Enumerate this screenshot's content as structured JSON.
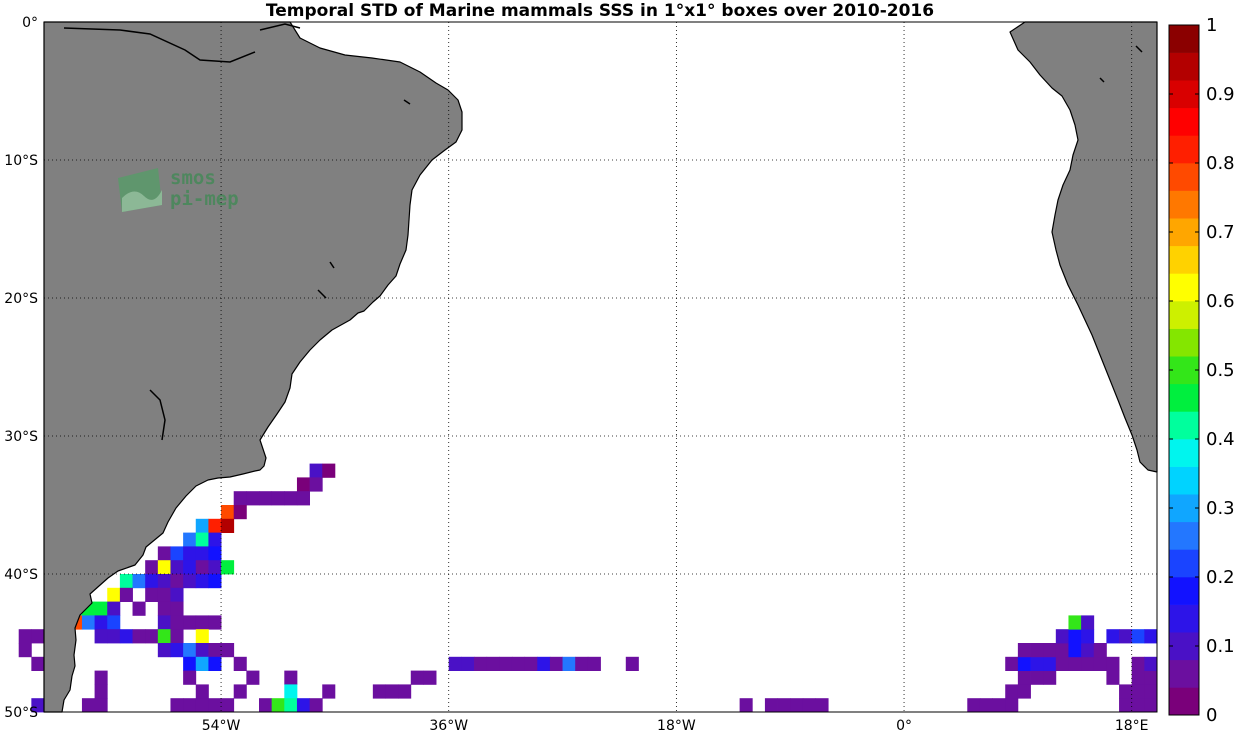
{
  "chart_data": {
    "type": "heatmap",
    "title": "Temporal STD of Marine mammals SSS in 1°x1° boxes over 2010-2016",
    "xlim": [
      -68,
      20
    ],
    "ylim": [
      -50,
      0
    ],
    "x_ticks": [
      {
        "value": -54,
        "label": "54°W"
      },
      {
        "value": -36,
        "label": "36°W"
      },
      {
        "value": -18,
        "label": "18°W"
      },
      {
        "value": 0,
        "label": "0°"
      },
      {
        "value": 18,
        "label": "18°E"
      }
    ],
    "y_ticks": [
      {
        "value": 0,
        "label": "0°"
      },
      {
        "value": -10,
        "label": "10°S"
      },
      {
        "value": -20,
        "label": "20°S"
      },
      {
        "value": -30,
        "label": "30°S"
      },
      {
        "value": -40,
        "label": "40°S"
      },
      {
        "value": -50,
        "label": "50°S"
      }
    ],
    "grid": true,
    "grid_style": "dotted",
    "land_color": "#808080",
    "colorbar": {
      "min": 0,
      "max": 1,
      "ticks": [
        "0",
        "0.1",
        "0.2",
        "0.3",
        "0.4",
        "0.5",
        "0.6",
        "0.7",
        "0.8",
        "0.9",
        "1"
      ],
      "colors": [
        "#7a007a",
        "#6b0f9f",
        "#4a11c6",
        "#2d14e8",
        "#1212ff",
        "#1a44ff",
        "#2377ff",
        "#10a6ff",
        "#00d3ff",
        "#00f5ee",
        "#00ff9d",
        "#00ef3e",
        "#33e619",
        "#84e600",
        "#cdf000",
        "#ffff00",
        "#ffd200",
        "#ffa600",
        "#ff7800",
        "#ff4a00",
        "#ff1f00",
        "#ff0000",
        "#d90000",
        "#b30000",
        "#8b0000"
      ]
    },
    "cells": [
      {
        "lon": -46.5,
        "lat": -32.5,
        "value": 0.08
      },
      {
        "lon": -45.5,
        "lat": -32.5,
        "value": 0.03
      },
      {
        "lon": -47.5,
        "lat": -33.5,
        "value": 0.03
      },
      {
        "lon": -46.5,
        "lat": -33.5,
        "value": 0.04
      },
      {
        "lon": -52.5,
        "lat": -34.5,
        "value": 0.04
      },
      {
        "lon": -51.5,
        "lat": -34.5,
        "value": 0.05
      },
      {
        "lon": -50.5,
        "lat": -34.5,
        "value": 0.05
      },
      {
        "lon": -49.5,
        "lat": -34.5,
        "value": 0.04
      },
      {
        "lon": -48.5,
        "lat": -34.5,
        "value": 0.06
      },
      {
        "lon": -47.5,
        "lat": -34.5,
        "value": 0.04
      },
      {
        "lon": -53.5,
        "lat": -35.5,
        "value": 0.76
      },
      {
        "lon": -52.5,
        "lat": -35.5,
        "value": 0.03
      },
      {
        "lon": -55.5,
        "lat": -36.5,
        "value": 0.3
      },
      {
        "lon": -54.5,
        "lat": -36.5,
        "value": 0.8
      },
      {
        "lon": -53.5,
        "lat": -36.5,
        "value": 0.93
      },
      {
        "lon": -56.5,
        "lat": -37.5,
        "value": 0.26
      },
      {
        "lon": -55.5,
        "lat": -37.5,
        "value": 0.42
      },
      {
        "lon": -54.5,
        "lat": -37.5,
        "value": 0.12
      },
      {
        "lon": -58.5,
        "lat": -38.5,
        "value": 0.06
      },
      {
        "lon": -57.5,
        "lat": -38.5,
        "value": 0.2
      },
      {
        "lon": -56.5,
        "lat": -38.5,
        "value": 0.14
      },
      {
        "lon": -55.5,
        "lat": -38.5,
        "value": 0.14
      },
      {
        "lon": -54.5,
        "lat": -38.5,
        "value": 0.16
      },
      {
        "lon": -59.5,
        "lat": -39.5,
        "value": 0.05
      },
      {
        "lon": -58.5,
        "lat": -39.5,
        "value": 0.62
      },
      {
        "lon": -57.5,
        "lat": -39.5,
        "value": 0.1
      },
      {
        "lon": -56.5,
        "lat": -39.5,
        "value": 0.12
      },
      {
        "lon": -55.5,
        "lat": -39.5,
        "value": 0.07
      },
      {
        "lon": -54.5,
        "lat": -39.5,
        "value": 0.08
      },
      {
        "lon": -53.5,
        "lat": -39.5,
        "value": 0.44
      },
      {
        "lon": -61.5,
        "lat": -40.5,
        "value": 0.4
      },
      {
        "lon": -60.5,
        "lat": -40.5,
        "value": 0.26
      },
      {
        "lon": -59.5,
        "lat": -40.5,
        "value": 0.12
      },
      {
        "lon": -58.5,
        "lat": -40.5,
        "value": 0.08
      },
      {
        "lon": -57.5,
        "lat": -40.5,
        "value": 0.06
      },
      {
        "lon": -56.5,
        "lat": -40.5,
        "value": 0.1
      },
      {
        "lon": -55.5,
        "lat": -40.5,
        "value": 0.14
      },
      {
        "lon": -54.5,
        "lat": -40.5,
        "value": 0.18
      },
      {
        "lon": -62.5,
        "lat": -41.5,
        "value": 0.62
      },
      {
        "lon": -61.5,
        "lat": -41.5,
        "value": 0.05
      },
      {
        "lon": -59.5,
        "lat": -41.5,
        "value": 0.04
      },
      {
        "lon": -58.5,
        "lat": -41.5,
        "value": 0.04
      },
      {
        "lon": -57.5,
        "lat": -41.5,
        "value": 0.08
      },
      {
        "lon": -65.5,
        "lat": -42.5,
        "value": 0.4
      },
      {
        "lon": -64.5,
        "lat": -42.5,
        "value": 0.46
      },
      {
        "lon": -63.5,
        "lat": -42.5,
        "value": 0.44
      },
      {
        "lon": -62.5,
        "lat": -42.5,
        "value": 0.08
      },
      {
        "lon": -60.5,
        "lat": -42.5,
        "value": 0.05
      },
      {
        "lon": -58.5,
        "lat": -42.5,
        "value": 0.07
      },
      {
        "lon": -57.5,
        "lat": -42.5,
        "value": 0.05
      },
      {
        "lon": -67.5,
        "lat": -43.5,
        "value": 0.04
      },
      {
        "lon": -65.5,
        "lat": -43.5,
        "value": 0.76
      },
      {
        "lon": -64.5,
        "lat": -43.5,
        "value": 0.26
      },
      {
        "lon": -63.5,
        "lat": -43.5,
        "value": 0.12
      },
      {
        "lon": -62.5,
        "lat": -43.5,
        "value": 0.2
      },
      {
        "lon": -58.5,
        "lat": -43.5,
        "value": 0.1
      },
      {
        "lon": -57.5,
        "lat": -43.5,
        "value": 0.04
      },
      {
        "lon": -56.5,
        "lat": -43.5,
        "value": 0.04
      },
      {
        "lon": -55.5,
        "lat": -43.5,
        "value": 0.04
      },
      {
        "lon": -54.5,
        "lat": -43.5,
        "value": 0.04
      },
      {
        "lon": -69.5,
        "lat": -44.5,
        "value": 0.04
      },
      {
        "lon": -68.5,
        "lat": -44.5,
        "value": 0.04
      },
      {
        "lon": -63.5,
        "lat": -44.5,
        "value": 0.1
      },
      {
        "lon": -62.5,
        "lat": -44.5,
        "value": 0.1
      },
      {
        "lon": -61.5,
        "lat": -44.5,
        "value": 0.12
      },
      {
        "lon": -60.5,
        "lat": -44.5,
        "value": 0.06
      },
      {
        "lon": -59.5,
        "lat": -44.5,
        "value": 0.06
      },
      {
        "lon": -58.5,
        "lat": -44.5,
        "value": 0.5
      },
      {
        "lon": -57.5,
        "lat": -44.5,
        "value": 0.04
      },
      {
        "lon": -55.5,
        "lat": -44.5,
        "value": 0.6
      },
      {
        "lon": -69.5,
        "lat": -45.5,
        "value": 0.04
      },
      {
        "lon": -67.5,
        "lat": -45.5,
        "value": 0.04
      },
      {
        "lon": -58.5,
        "lat": -45.5,
        "value": 0.1
      },
      {
        "lon": -57.5,
        "lat": -45.5,
        "value": 0.12
      },
      {
        "lon": -56.5,
        "lat": -45.5,
        "value": 0.26
      },
      {
        "lon": -55.5,
        "lat": -45.5,
        "value": 0.08
      },
      {
        "lon": -54.5,
        "lat": -45.5,
        "value": 0.04
      },
      {
        "lon": -53.5,
        "lat": -45.5,
        "value": 0.04
      },
      {
        "lon": -68.5,
        "lat": -46.5,
        "value": 0.04
      },
      {
        "lon": -67.5,
        "lat": -46.5,
        "value": 0.04
      },
      {
        "lon": -56.5,
        "lat": -46.5,
        "value": 0.16
      },
      {
        "lon": -55.5,
        "lat": -46.5,
        "value": 0.3
      },
      {
        "lon": -54.5,
        "lat": -46.5,
        "value": 0.18
      },
      {
        "lon": -52.5,
        "lat": -46.5,
        "value": 0.04
      },
      {
        "lon": -35.5,
        "lat": -46.5,
        "value": 0.08
      },
      {
        "lon": -34.5,
        "lat": -46.5,
        "value": 0.08
      },
      {
        "lon": -33.5,
        "lat": -46.5,
        "value": 0.06
      },
      {
        "lon": -32.5,
        "lat": -46.5,
        "value": 0.06
      },
      {
        "lon": -31.5,
        "lat": -46.5,
        "value": 0.04
      },
      {
        "lon": -30.5,
        "lat": -46.5,
        "value": 0.04
      },
      {
        "lon": -29.5,
        "lat": -46.5,
        "value": 0.05
      },
      {
        "lon": -28.5,
        "lat": -46.5,
        "value": 0.12
      },
      {
        "lon": -27.5,
        "lat": -46.5,
        "value": 0.06
      },
      {
        "lon": -26.5,
        "lat": -46.5,
        "value": 0.24
      },
      {
        "lon": -25.5,
        "lat": -46.5,
        "value": 0.05
      },
      {
        "lon": -24.5,
        "lat": -46.5,
        "value": 0.05
      },
      {
        "lon": -21.5,
        "lat": -46.5,
        "value": 0.04
      },
      {
        "lon": -66.5,
        "lat": -47.5,
        "value": 0.04
      },
      {
        "lon": -63.5,
        "lat": -47.5,
        "value": 0.04
      },
      {
        "lon": -56.5,
        "lat": -47.5,
        "value": 0.04
      },
      {
        "lon": -51.5,
        "lat": -47.5,
        "value": 0.04
      },
      {
        "lon": -48.5,
        "lat": -47.5,
        "value": 0.04
      },
      {
        "lon": -38.5,
        "lat": -47.5,
        "value": 0.04
      },
      {
        "lon": -37.5,
        "lat": -47.5,
        "value": 0.04
      },
      {
        "lon": -67.5,
        "lat": -48.5,
        "value": 0.04
      },
      {
        "lon": -63.5,
        "lat": -48.5,
        "value": 0.06
      },
      {
        "lon": -55.5,
        "lat": -48.5,
        "value": 0.04
      },
      {
        "lon": -52.5,
        "lat": -48.5,
        "value": 0.04
      },
      {
        "lon": -48.5,
        "lat": -48.5,
        "value": 0.38
      },
      {
        "lon": -45.5,
        "lat": -48.5,
        "value": 0.04
      },
      {
        "lon": -41.5,
        "lat": -48.5,
        "value": 0.04
      },
      {
        "lon": -40.5,
        "lat": -48.5,
        "value": 0.04
      },
      {
        "lon": -39.5,
        "lat": -48.5,
        "value": 0.04
      },
      {
        "lon": -68.5,
        "lat": -49.5,
        "value": 0.1
      },
      {
        "lon": -64.5,
        "lat": -49.5,
        "value": 0.04
      },
      {
        "lon": -63.5,
        "lat": -49.5,
        "value": 0.04
      },
      {
        "lon": -57.5,
        "lat": -49.5,
        "value": 0.04
      },
      {
        "lon": -56.5,
        "lat": -49.5,
        "value": 0.04
      },
      {
        "lon": -55.5,
        "lat": -49.5,
        "value": 0.04
      },
      {
        "lon": -54.5,
        "lat": -49.5,
        "value": 0.04
      },
      {
        "lon": -53.5,
        "lat": -49.5,
        "value": 0.04
      },
      {
        "lon": -50.5,
        "lat": -49.5,
        "value": 0.05
      },
      {
        "lon": -49.5,
        "lat": -49.5,
        "value": 0.5
      },
      {
        "lon": -48.5,
        "lat": -49.5,
        "value": 0.42
      },
      {
        "lon": -47.5,
        "lat": -49.5,
        "value": 0.12
      },
      {
        "lon": -46.5,
        "lat": -49.5,
        "value": 0.04
      },
      {
        "lon": -12.5,
        "lat": -49.5,
        "value": 0.04
      },
      {
        "lon": -10.5,
        "lat": -49.5,
        "value": 0.04
      },
      {
        "lon": -9.5,
        "lat": -49.5,
        "value": 0.04
      },
      {
        "lon": -8.5,
        "lat": -49.5,
        "value": 0.04
      },
      {
        "lon": -7.5,
        "lat": -49.5,
        "value": 0.04
      },
      {
        "lon": -6.5,
        "lat": -49.5,
        "value": 0.04
      },
      {
        "lon": 5.5,
        "lat": -49.5,
        "value": 0.04
      },
      {
        "lon": 6.5,
        "lat": -49.5,
        "value": 0.04
      },
      {
        "lon": 7.5,
        "lat": -49.5,
        "value": 0.04
      },
      {
        "lon": 8.5,
        "lat": -49.5,
        "value": 0.04
      },
      {
        "lon": 17.5,
        "lat": -49.5,
        "value": 0.04
      },
      {
        "lon": 18.5,
        "lat": -49.5,
        "value": 0.04
      },
      {
        "lon": 19.5,
        "lat": -49.5,
        "value": 0.04
      },
      {
        "lon": 8.5,
        "lat": -48.5,
        "value": 0.04
      },
      {
        "lon": 9.5,
        "lat": -48.5,
        "value": 0.04
      },
      {
        "lon": 17.5,
        "lat": -48.5,
        "value": 0.04
      },
      {
        "lon": 18.5,
        "lat": -48.5,
        "value": 0.04
      },
      {
        "lon": 19.5,
        "lat": -48.5,
        "value": 0.04
      },
      {
        "lon": 9.5,
        "lat": -47.5,
        "value": 0.04
      },
      {
        "lon": 10.5,
        "lat": -47.5,
        "value": 0.04
      },
      {
        "lon": 11.5,
        "lat": -47.5,
        "value": 0.04
      },
      {
        "lon": 16.5,
        "lat": -47.5,
        "value": 0.04
      },
      {
        "lon": 18.5,
        "lat": -47.5,
        "value": 0.04
      },
      {
        "lon": 19.5,
        "lat": -47.5,
        "value": 0.06
      },
      {
        "lon": 8.5,
        "lat": -46.5,
        "value": 0.04
      },
      {
        "lon": 9.5,
        "lat": -46.5,
        "value": 0.18
      },
      {
        "lon": 10.5,
        "lat": -46.5,
        "value": 0.14
      },
      {
        "lon": 11.5,
        "lat": -46.5,
        "value": 0.12
      },
      {
        "lon": 12.5,
        "lat": -46.5,
        "value": 0.05
      },
      {
        "lon": 13.5,
        "lat": -46.5,
        "value": 0.04
      },
      {
        "lon": 14.5,
        "lat": -46.5,
        "value": 0.06
      },
      {
        "lon": 15.5,
        "lat": -46.5,
        "value": 0.06
      },
      {
        "lon": 16.5,
        "lat": -46.5,
        "value": 0.04
      },
      {
        "lon": 18.5,
        "lat": -46.5,
        "value": 0.06
      },
      {
        "lon": 19.5,
        "lat": -46.5,
        "value": 0.1
      },
      {
        "lon": 9.5,
        "lat": -45.5,
        "value": 0.04
      },
      {
        "lon": 10.5,
        "lat": -45.5,
        "value": 0.04
      },
      {
        "lon": 11.5,
        "lat": -45.5,
        "value": 0.04
      },
      {
        "lon": 12.5,
        "lat": -45.5,
        "value": 0.04
      },
      {
        "lon": 13.5,
        "lat": -45.5,
        "value": 0.16
      },
      {
        "lon": 14.5,
        "lat": -45.5,
        "value": 0.1
      },
      {
        "lon": 15.5,
        "lat": -45.5,
        "value": 0.04
      },
      {
        "lon": 12.5,
        "lat": -44.5,
        "value": 0.08
      },
      {
        "lon": 13.5,
        "lat": -44.5,
        "value": 0.18
      },
      {
        "lon": 14.5,
        "lat": -44.5,
        "value": 0.12
      },
      {
        "lon": 16.5,
        "lat": -44.5,
        "value": 0.14
      },
      {
        "lon": 17.5,
        "lat": -44.5,
        "value": 0.1
      },
      {
        "lon": 18.5,
        "lat": -44.5,
        "value": 0.2
      },
      {
        "lon": 19.5,
        "lat": -44.5,
        "value": 0.12
      },
      {
        "lon": 13.5,
        "lat": -43.5,
        "value": 0.5
      },
      {
        "lon": 14.5,
        "lat": -43.5,
        "value": 0.1
      }
    ],
    "watermark": {
      "line1": "smos",
      "line2": "pi-mep"
    }
  }
}
